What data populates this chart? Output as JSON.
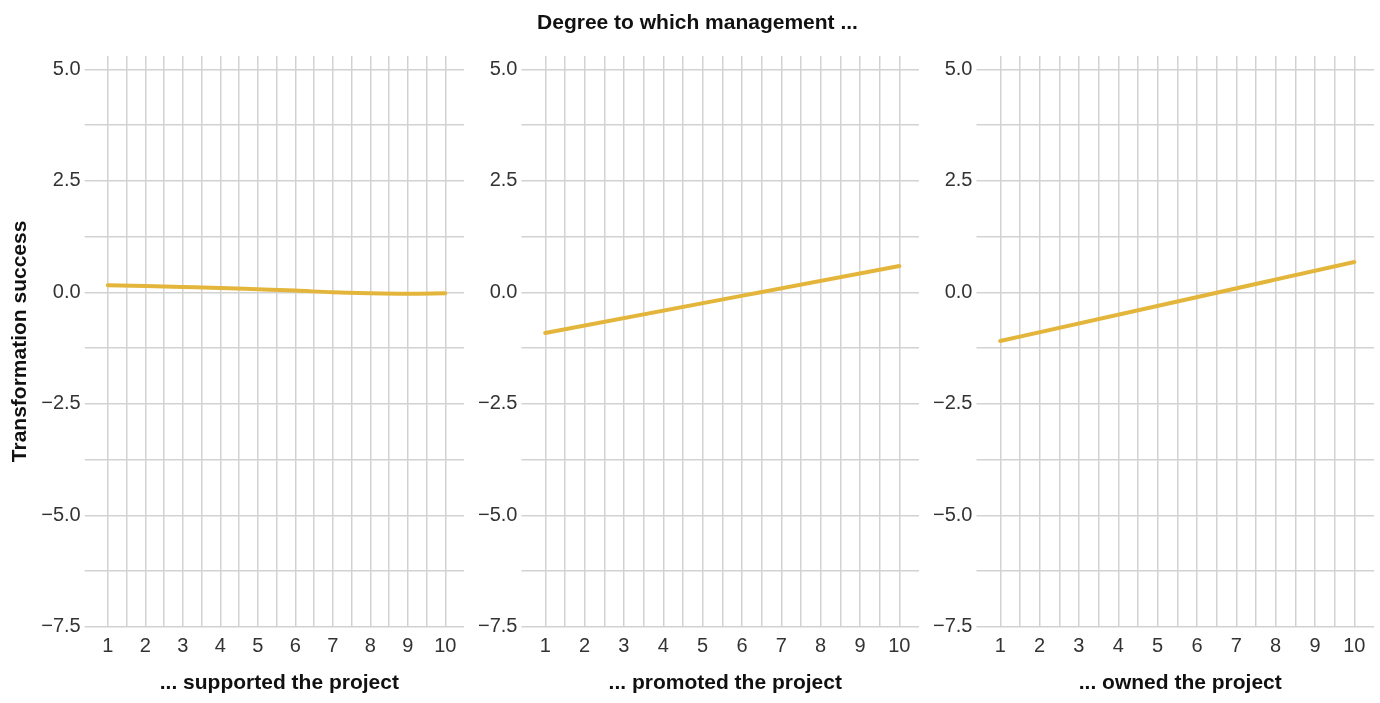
{
  "chart_data": [
    {
      "type": "line",
      "ylabel": "Transformation success",
      "xlabel": "... supported the project",
      "x": [
        1,
        2,
        3,
        4,
        5,
        6,
        7,
        8,
        9,
        10
      ],
      "series": [
        {
          "color": "#e3b53a",
          "values": [
            0.16,
            0.14,
            0.12,
            0.1,
            0.07,
            0.04,
            0.0,
            -0.02,
            -0.03,
            -0.02
          ]
        }
      ],
      "xlim": [
        0.65,
        10.5
      ],
      "ylim": [
        -7.5,
        5.3
      ],
      "xticks": [
        1,
        {
          "value": 1.5,
          "label": null
        },
        2,
        {
          "value": 2.5,
          "label": null
        },
        3,
        {
          "value": 3.5,
          "label": null
        },
        4,
        {
          "value": 4.5,
          "label": null
        },
        5,
        {
          "value": 5.5,
          "label": null
        },
        6,
        {
          "value": 6.5,
          "label": null
        },
        7,
        {
          "value": 7.5,
          "label": null
        },
        8,
        {
          "value": 8.5,
          "label": null
        },
        9,
        {
          "value": 9.5,
          "label": null
        },
        10
      ],
      "yticks": [
        {
          "value": -7.5,
          "label": "−7.5"
        },
        {
          "value": -6.25,
          "label": null
        },
        {
          "value": -5,
          "label": "−5.0"
        },
        {
          "value": -3.75,
          "label": null
        },
        {
          "value": -2.5,
          "label": "−2.5"
        },
        {
          "value": -1.25,
          "label": null
        },
        {
          "value": 0,
          "label": "0.0"
        },
        {
          "value": 1.25,
          "label": null
        },
        {
          "value": 2.5,
          "label": "2.5"
        },
        {
          "value": 3.75,
          "label": null
        },
        {
          "value": 5,
          "label": "5.0"
        }
      ],
      "grid": true,
      "marker": "none"
    },
    {
      "type": "line",
      "title": "Degree to which management ...",
      "xlabel": "... promoted the project",
      "x": [
        1,
        10
      ],
      "series": [
        {
          "color": "#e3b53a",
          "values": [
            -0.91,
            0.59
          ]
        }
      ],
      "xlim": [
        0.65,
        10.5
      ],
      "ylim": [
        -7.5,
        5.3
      ],
      "xticks": [
        1,
        {
          "value": 1.5,
          "label": null
        },
        2,
        {
          "value": 2.5,
          "label": null
        },
        3,
        {
          "value": 3.5,
          "label": null
        },
        4,
        {
          "value": 4.5,
          "label": null
        },
        5,
        {
          "value": 5.5,
          "label": null
        },
        6,
        {
          "value": 6.5,
          "label": null
        },
        7,
        {
          "value": 7.5,
          "label": null
        },
        8,
        {
          "value": 8.5,
          "label": null
        },
        9,
        {
          "value": 9.5,
          "label": null
        },
        10
      ],
      "yticks": [
        {
          "value": -7.5,
          "label": "−7.5"
        },
        {
          "value": -6.25,
          "label": null
        },
        {
          "value": -5,
          "label": "−5.0"
        },
        {
          "value": -3.75,
          "label": null
        },
        {
          "value": -2.5,
          "label": "−2.5"
        },
        {
          "value": -1.25,
          "label": null
        },
        {
          "value": 0,
          "label": "0.0"
        },
        {
          "value": 1.25,
          "label": null
        },
        {
          "value": 2.5,
          "label": "2.5"
        },
        {
          "value": 3.75,
          "label": null
        },
        {
          "value": 5,
          "label": "5.0"
        }
      ],
      "grid": true,
      "marker": "none"
    },
    {
      "type": "line",
      "xlabel": "... owned the project",
      "x": [
        1,
        10
      ],
      "series": [
        {
          "color": "#e3b53a",
          "values": [
            -1.09,
            0.68
          ]
        }
      ],
      "xlim": [
        0.65,
        10.5
      ],
      "ylim": [
        -7.5,
        5.3
      ],
      "xticks": [
        1,
        {
          "value": 1.5,
          "label": null
        },
        2,
        {
          "value": 2.5,
          "label": null
        },
        3,
        {
          "value": 3.5,
          "label": null
        },
        4,
        {
          "value": 4.5,
          "label": null
        },
        5,
        {
          "value": 5.5,
          "label": null
        },
        6,
        {
          "value": 6.5,
          "label": null
        },
        7,
        {
          "value": 7.5,
          "label": null
        },
        8,
        {
          "value": 8.5,
          "label": null
        },
        9,
        {
          "value": 9.5,
          "label": null
        },
        10
      ],
      "yticks": [
        {
          "value": -7.5,
          "label": "−7.5"
        },
        {
          "value": -6.25,
          "label": null
        },
        {
          "value": -5,
          "label": "−5.0"
        },
        {
          "value": -3.75,
          "label": null
        },
        {
          "value": -2.5,
          "label": "−2.5"
        },
        {
          "value": -1.25,
          "label": null
        },
        {
          "value": 0,
          "label": "0.0"
        },
        {
          "value": 1.25,
          "label": null
        },
        {
          "value": 2.5,
          "label": "2.5"
        },
        {
          "value": 3.75,
          "label": null
        },
        {
          "value": 5,
          "label": "5.0"
        }
      ],
      "grid": true,
      "marker": "none"
    }
  ]
}
